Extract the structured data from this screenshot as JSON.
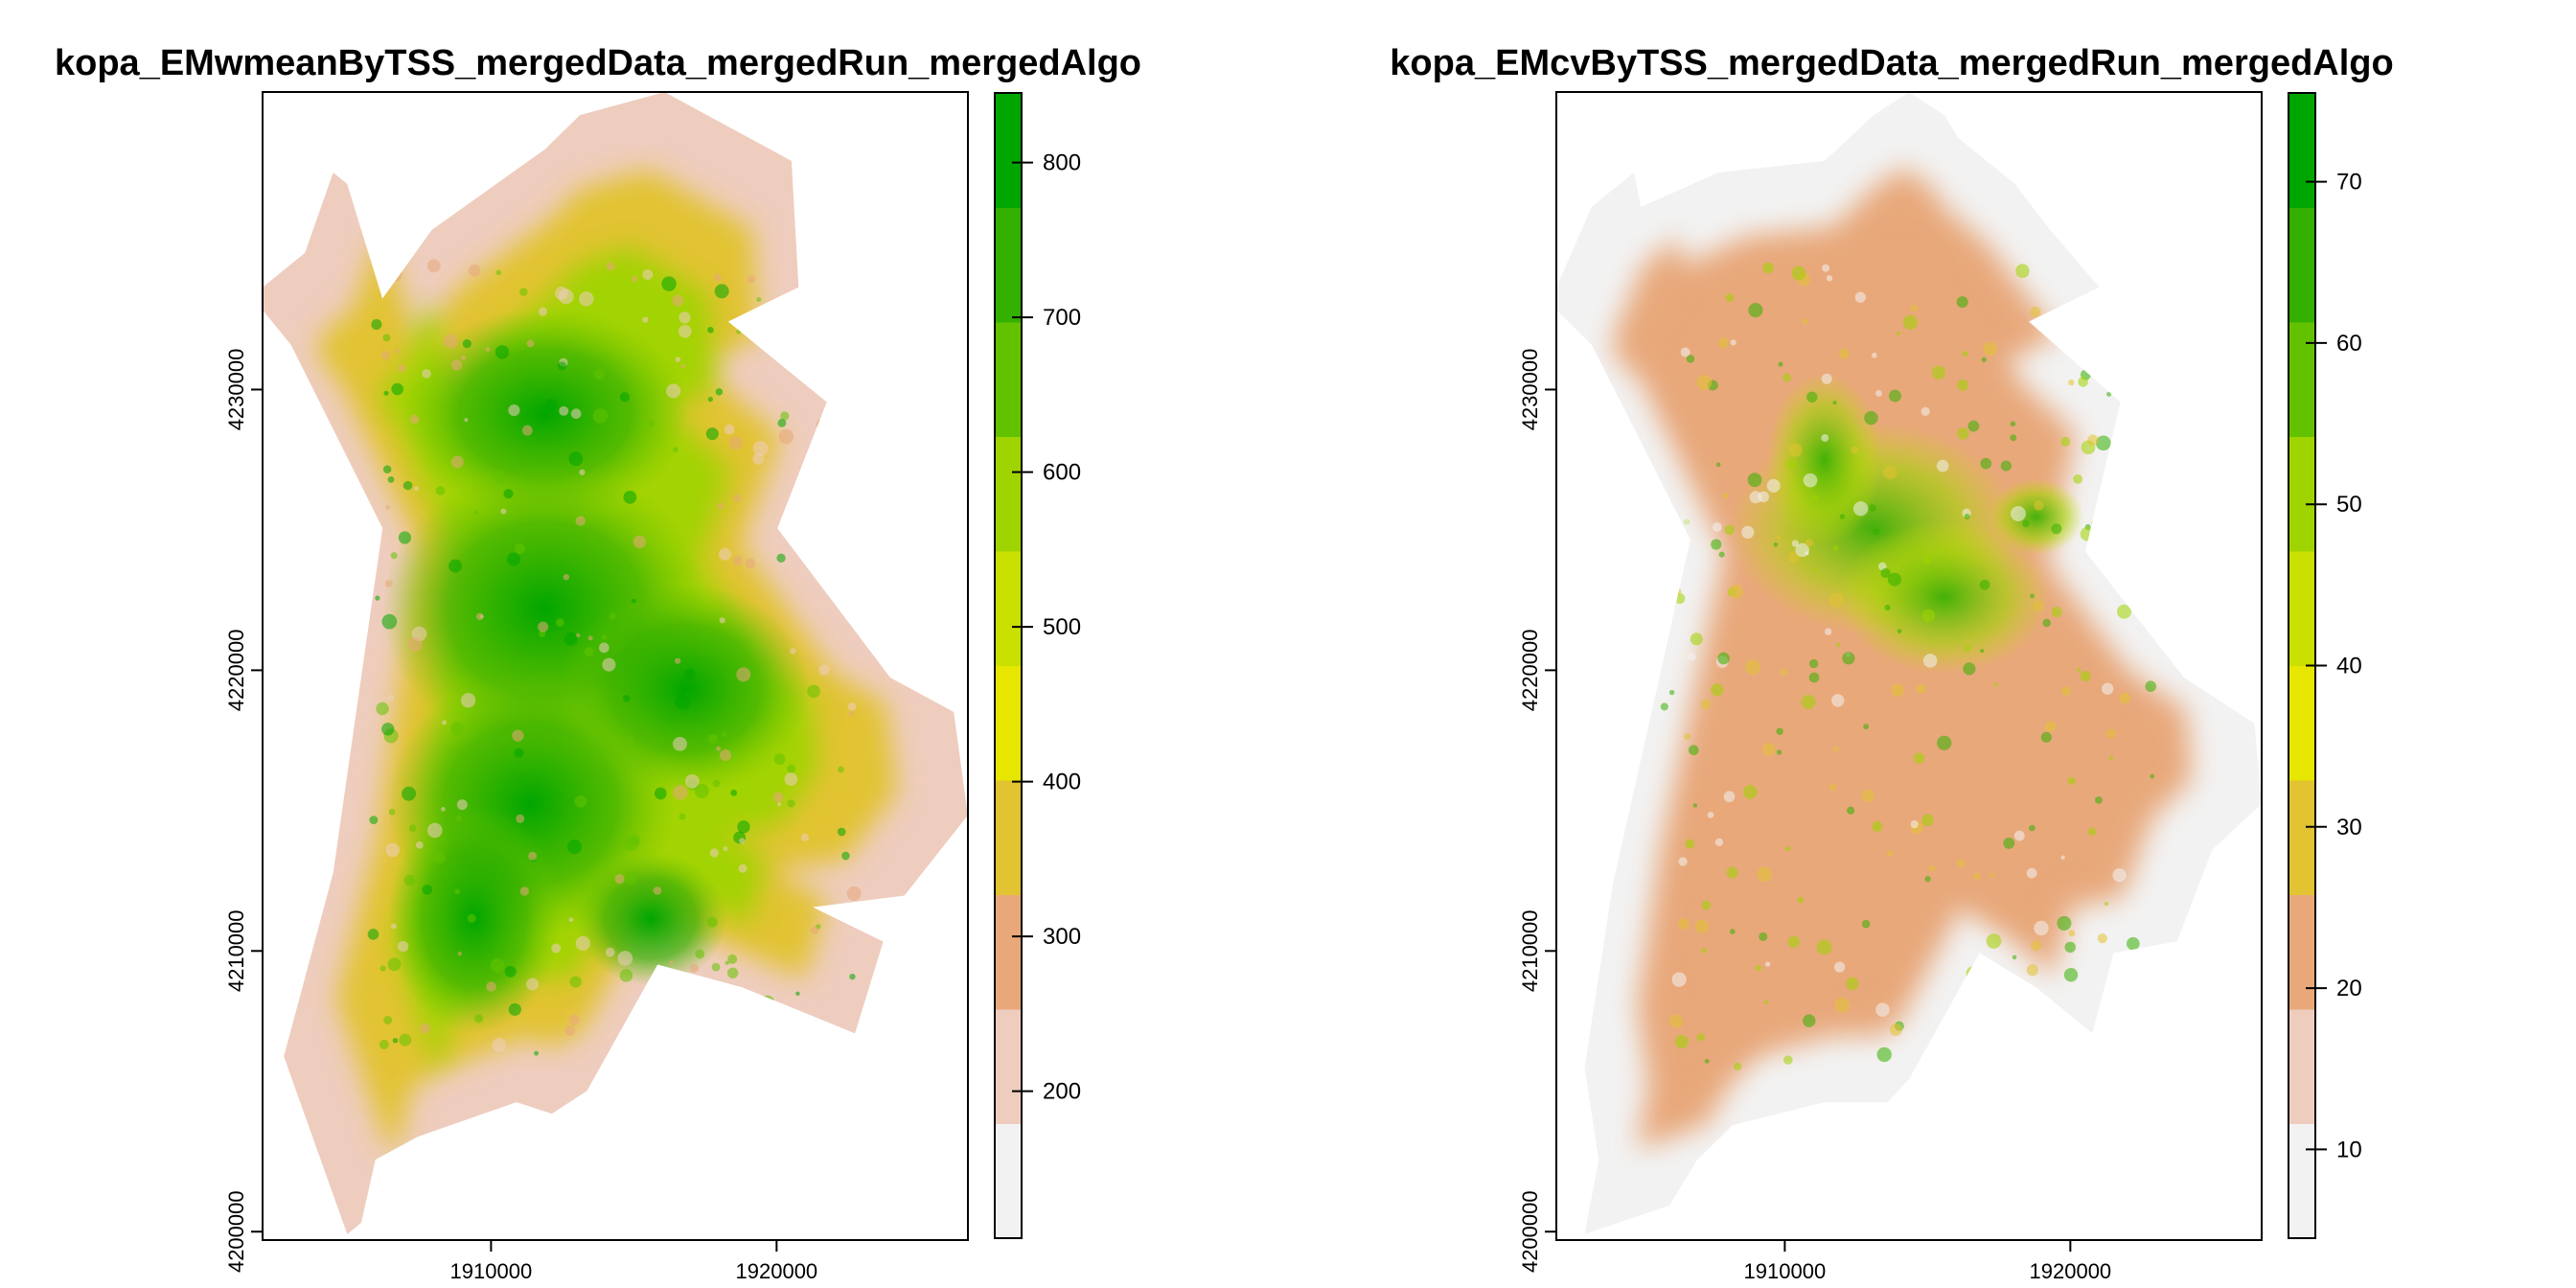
{
  "chart_data": [
    {
      "type": "heatmap",
      "title": "kopa_EMwmeanByTSS_mergedData_mergedRun_mergedAlgo",
      "xlabel": "",
      "ylabel": "",
      "xlim": [
        1902000,
        1926700
      ],
      "ylim": [
        4199700,
        4240600
      ],
      "x_ticks": [
        1910000,
        1920000
      ],
      "x_tick_labels": [
        "1910000",
        "1920000"
      ],
      "y_ticks": [
        4200000,
        4210000,
        4220000,
        4230000
      ],
      "y_tick_labels": [
        "4200000",
        "4210000",
        "4220000",
        "4230000"
      ],
      "legend": {
        "placement": "right",
        "min": 105,
        "max": 845,
        "ticks": [
          200,
          300,
          400,
          500,
          600,
          700,
          800
        ],
        "tick_labels": [
          "200",
          "300",
          "400",
          "500",
          "600",
          "700",
          "800"
        ],
        "colors": [
          "#f2f2f2",
          "#eecdbf",
          "#e8a87a",
          "#e2c331",
          "#e6e600",
          "#c9e000",
          "#9fd400",
          "#63c200",
          "#33b000",
          "#00a600"
        ]
      },
      "grid": false
    },
    {
      "type": "heatmap",
      "title": "kopa_EMcvByTSS_mergedData_mergedRun_mergedAlgo",
      "xlabel": "",
      "ylabel": "",
      "xlim": [
        1902000,
        1926700
      ],
      "ylim": [
        4199700,
        4240600
      ],
      "x_ticks": [
        1910000,
        1920000
      ],
      "x_tick_labels": [
        "1910000",
        "1920000"
      ],
      "y_ticks": [
        4200000,
        4210000,
        4220000,
        4230000
      ],
      "y_tick_labels": [
        "4200000",
        "4210000",
        "4220000",
        "4230000"
      ],
      "legend": {
        "placement": "right",
        "min": 4.5,
        "max": 75.5,
        "ticks": [
          10,
          20,
          30,
          40,
          50,
          60,
          70
        ],
        "tick_labels": [
          "10",
          "20",
          "30",
          "40",
          "50",
          "60",
          "70"
        ],
        "colors": [
          "#f2f2f2",
          "#eecdbf",
          "#e8a87a",
          "#e2c331",
          "#e6e600",
          "#c9e000",
          "#9fd400",
          "#63c200",
          "#33b000",
          "#00a600"
        ]
      },
      "grid": false
    }
  ]
}
